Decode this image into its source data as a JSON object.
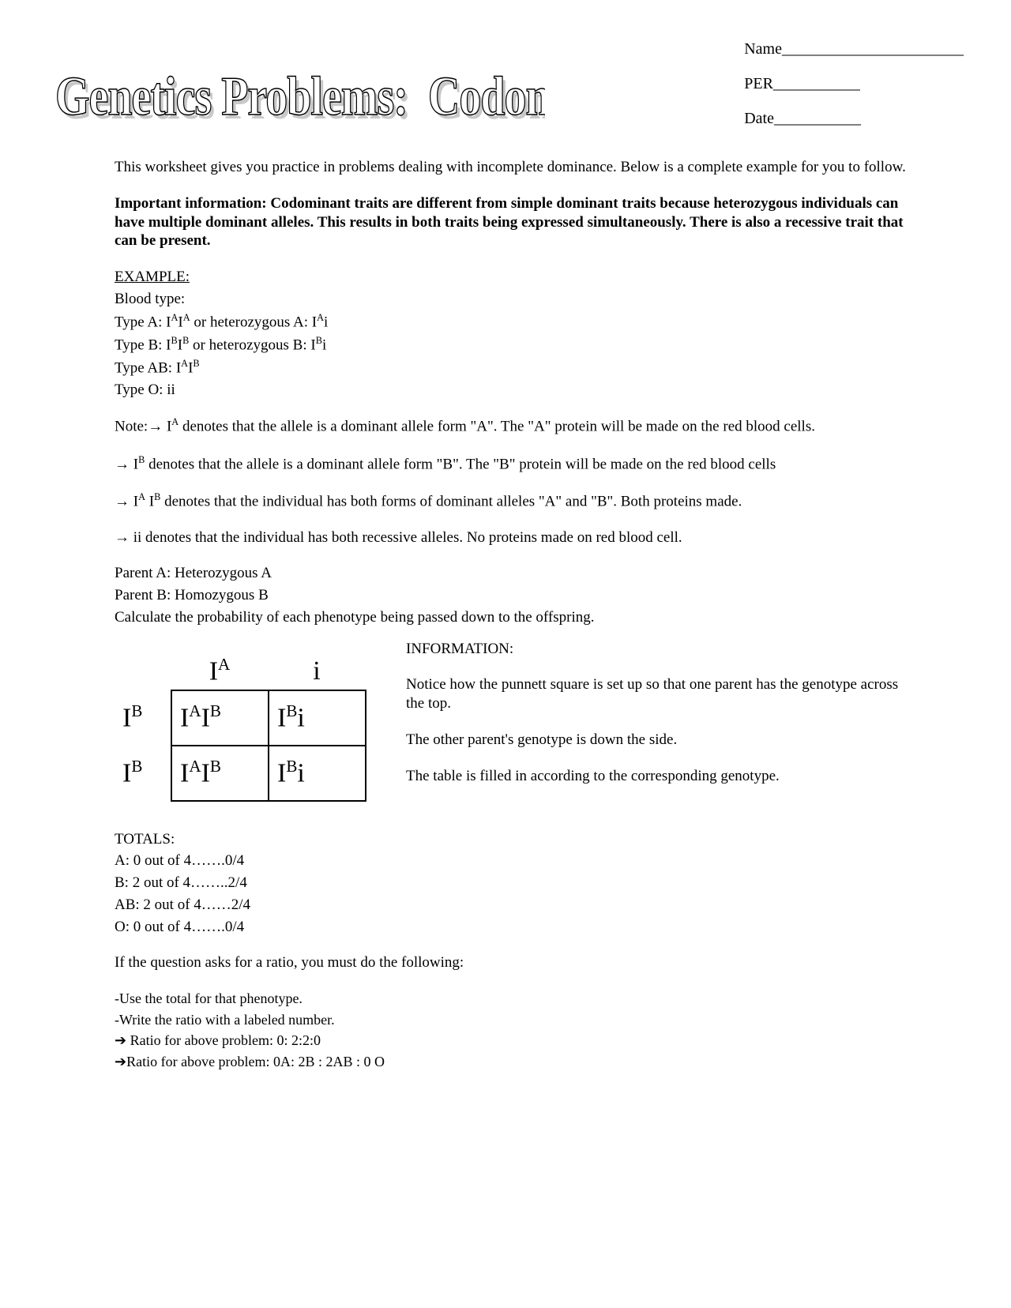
{
  "header": {
    "name_label": "Name_______________________",
    "per_label": "PER___________",
    "date_label": "Date___________"
  },
  "title": {
    "line1": "Genetics Problems:",
    "line2": "Codominance"
  },
  "intro": "This worksheet gives you practice in problems dealing with incomplete dominance.  Below is a complete example for you to follow.",
  "important": "Important  information: Codominant  traits are different from simple dominant traits because heterozygous individuals can have multiple dominant alleles. This results in both traits being expressed simultaneously.  There  is also a recessive trait  that can be present.",
  "example_heading": "EXAMPLE:",
  "bloodtype": {
    "label": "Blood type:",
    "typeA_pre": "Type A:  I",
    "typeA_mid": "I",
    "typeA_or": "  or  heterozygous A:   I",
    "typeA_end": "i",
    "typeB_pre": "Type B:  I",
    "typeB_mid": "I",
    "typeB_or": "  or  heterozygous B:   I",
    "typeB_end": "i",
    "typeAB_pre": "Type AB:  I",
    "typeAB_mid": "I",
    "typeO": "Type O:  ii"
  },
  "notes": {
    "pre": "Note:",
    "n1a": " I",
    "n1b": " denotes that the allele is a dominant allele form \"A\".  The \"A\" protein will be made on the red blood cells.",
    "n2a": " I",
    "n2b": " denotes that the allele is a dominant allele form \"B\".    The \"B\" protein will be made on the red blood cells",
    "n3a": " I",
    "n3mid": " I",
    "n3b": " denotes that the individual has both forms of dominant alleles  \"A\"  and \"B\". Both proteins made.",
    "n4": " ii   denotes that the individual has both recessive alleles. No proteins made on red blood cell."
  },
  "parents": {
    "a": "Parent A:  Heterozygous  A",
    "b": "Parent B:   Homozygous B",
    "calc": "Calculate the probability  of each phenotype being passed down to the offspring."
  },
  "punnett": {
    "top1": "I",
    "top1_sup": "A",
    "top2": "i",
    "side1": "I",
    "side1_sup": "B",
    "side2": "I",
    "side2_sup": "B",
    "c11a": "I",
    "c11a_sup": "A",
    "c11b": "I",
    "c11b_sup": "B",
    "c12a": "I",
    "c12a_sup": "B",
    "c12b": "i",
    "c21a": "I",
    "c21a_sup": "A",
    "c21b": "I",
    "c21b_sup": "B",
    "c22a": "I",
    "c22a_sup": "B",
    "c22b": "i"
  },
  "info": {
    "heading": "INFORMATION:",
    "p1": "Notice how the punnett square is set up so that one parent has the genotype across the top.",
    "p2": "The other parent's genotype is down the side.",
    "p3": "The table is filled in according to the corresponding genotype."
  },
  "totals": {
    "heading": "TOTALS:",
    "a": "A:  0 out of 4…….0/4",
    "b": "B: 2 out of 4……..2/4",
    "ab": "AB: 2 out of 4……2/4",
    "o": "O:  0 out of 4…….0/4"
  },
  "ratio": {
    "q": "If the question asks for a ratio, you must do the following:",
    "r1": "-Use the total for that phenotype.",
    "r2": "-Write the ratio with a labeled number.",
    "r3": " Ratio for above problem:  0: 2:2:0",
    "r4": "Ratio for above problem: 0A:  2B : 2AB : 0 O"
  },
  "glyphs": {
    "arrow": "→",
    "arrow_bold": "➔"
  }
}
